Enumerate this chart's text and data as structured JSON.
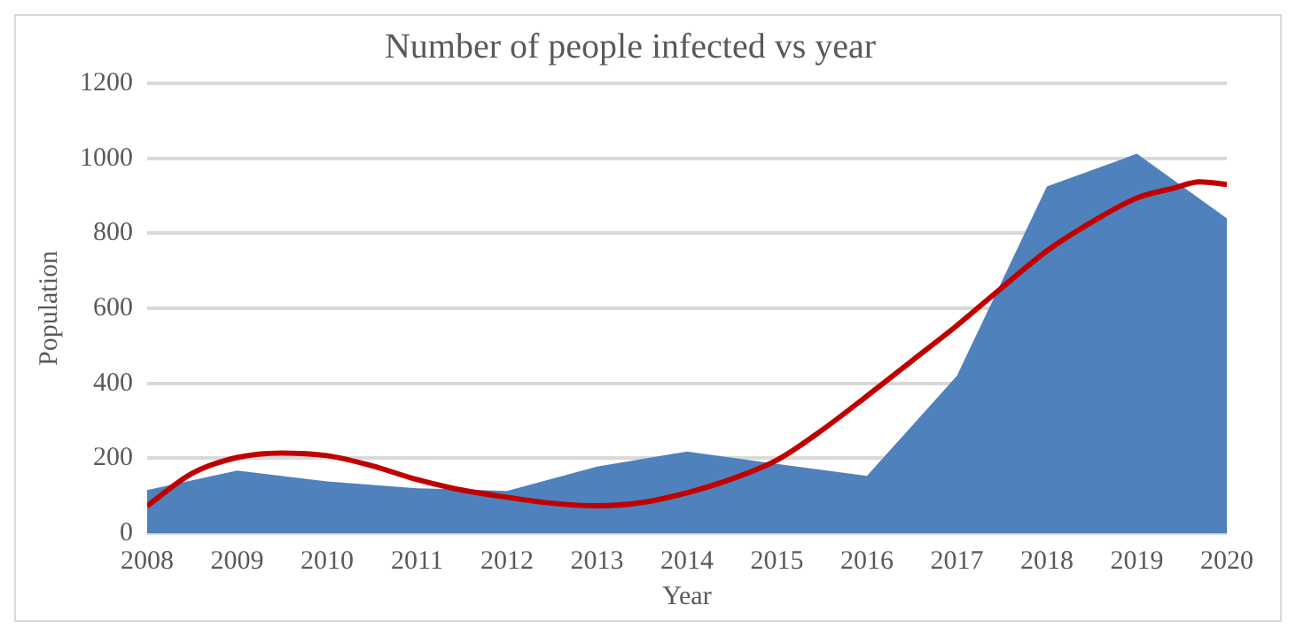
{
  "chart_data": {
    "type": "area",
    "title": "Number of people infected vs year",
    "xlabel": "Year",
    "ylabel": "Population",
    "x": [
      2008,
      2009,
      2010,
      2011,
      2012,
      2013,
      2014,
      2015,
      2016,
      2017,
      2018,
      2019,
      2020
    ],
    "series": [
      {
        "color": "#4f81bd",
        "values": [
          115,
          167,
          138,
          120,
          113,
          178,
          218,
          185,
          153,
          420,
          925,
          1012,
          840
        ]
      },
      {
        "type": "line",
        "color": "#c00000",
        "x": [
          2008,
          2008.5,
          2009,
          2009.5,
          2010,
          2010.5,
          2011,
          2011.5,
          2012,
          2012.5,
          2013,
          2013.5,
          2014,
          2014.5,
          2015,
          2015.5,
          2016,
          2016.5,
          2017,
          2017.5,
          2018,
          2018.5,
          2019,
          2019.4,
          2019.7,
          2020
        ],
        "values": [
          73,
          160,
          202,
          214,
          207,
          180,
          143,
          115,
          96,
          80,
          73,
          82,
          108,
          145,
          195,
          275,
          366,
          460,
          554,
          655,
          753,
          830,
          894,
          920,
          937,
          930
        ]
      }
    ],
    "xlim": [
      2008,
      2020
    ],
    "xticks": [
      2008,
      2009,
      2010,
      2011,
      2012,
      2013,
      2014,
      2015,
      2016,
      2017,
      2018,
      2019,
      2020
    ],
    "ylim": [
      0,
      1200
    ],
    "yticks": [
      0,
      200,
      400,
      600,
      800,
      1000,
      1200
    ],
    "grid": "y",
    "legend": false,
    "marker": "none",
    "line_style": "solid"
  }
}
